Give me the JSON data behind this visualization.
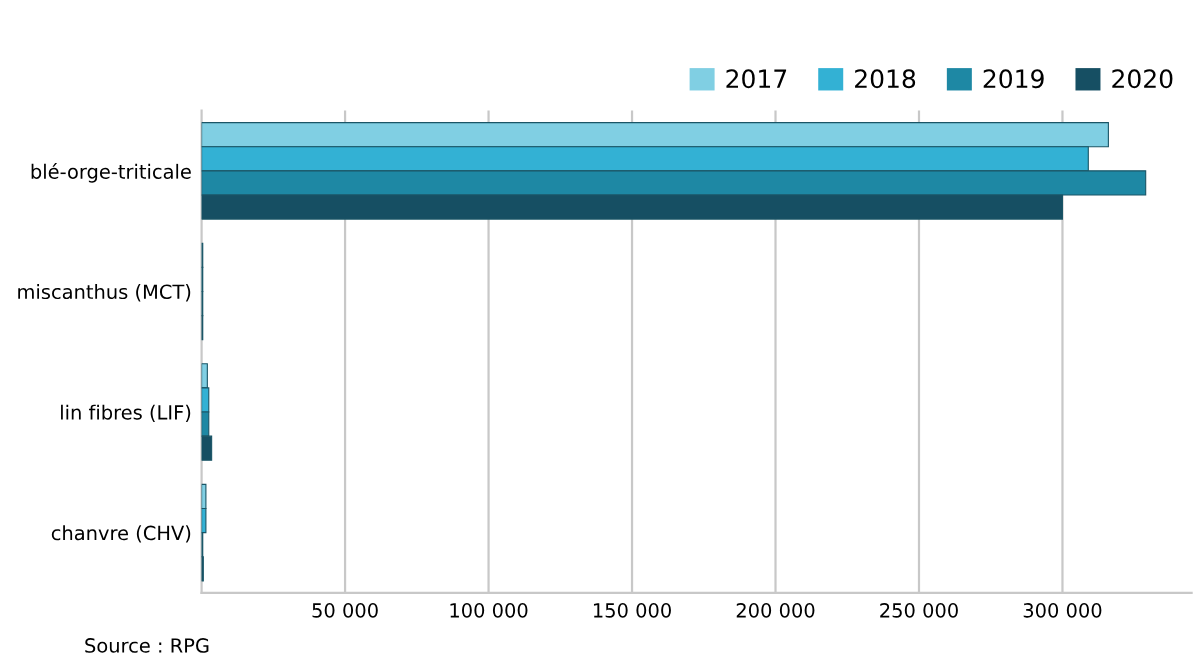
{
  "chart_data": {
    "type": "bar",
    "orientation": "horizontal",
    "categories": [
      "blé-orge-triticale",
      "miscanthus (MCT)",
      "lin fibres (LIF)",
      "chanvre (CHV)"
    ],
    "series": [
      {
        "name": "2017",
        "color": "#80cfe3",
        "values": [
          316000,
          400,
          2000,
          1500
        ]
      },
      {
        "name": "2018",
        "color": "#33b1d4",
        "values": [
          309000,
          400,
          2500,
          1500
        ]
      },
      {
        "name": "2019",
        "color": "#1e88a4",
        "values": [
          329000,
          400,
          2500,
          400
        ]
      },
      {
        "name": "2020",
        "color": "#164f63",
        "values": [
          300000,
          400,
          3500,
          600
        ]
      }
    ],
    "xlim": [
      0,
      345000
    ],
    "xticks": [
      {
        "value": 50000,
        "label": "50 000"
      },
      {
        "value": 100000,
        "label": "100 000"
      },
      {
        "value": 150000,
        "label": "150 000"
      },
      {
        "value": 200000,
        "label": "200 000"
      },
      {
        "value": 250000,
        "label": "250 000"
      },
      {
        "value": 300000,
        "label": "300 000"
      }
    ],
    "grid": "x",
    "legend": "top right",
    "annotations": [
      "Source : RPG"
    ]
  }
}
